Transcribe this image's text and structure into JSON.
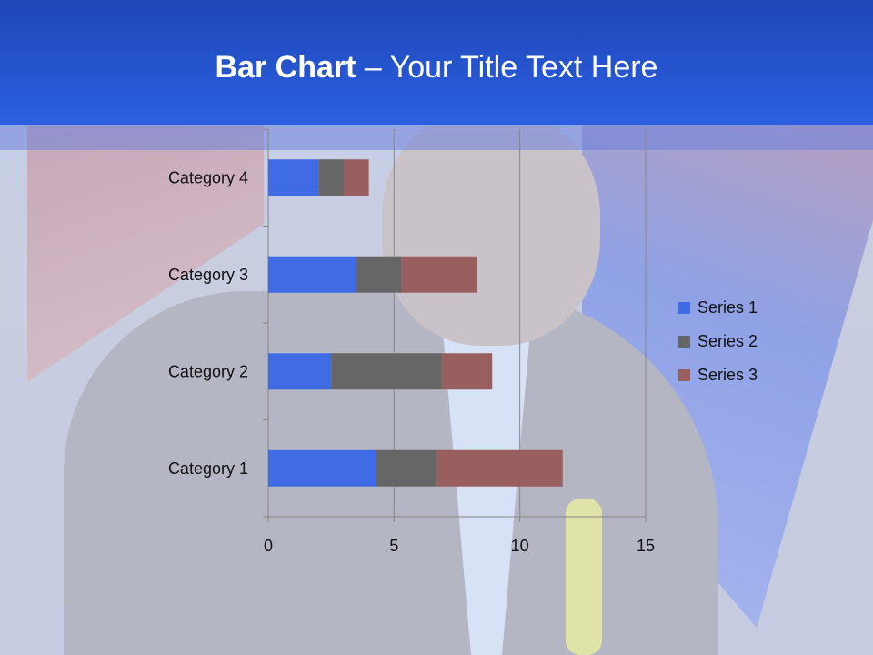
{
  "slide": {
    "title_bold": "Bar Chart",
    "title_rest": " – Your Title Text Here"
  },
  "chart_data": {
    "type": "bar",
    "orientation": "horizontal",
    "stacked": true,
    "categories": [
      "Category 1",
      "Category 2",
      "Category 3",
      "Category 4"
    ],
    "series": [
      {
        "name": "Series 1",
        "values": [
          4.3,
          2.5,
          3.5,
          2
        ],
        "color": "#3f6be4"
      },
      {
        "name": "Series 2",
        "values": [
          2.4,
          4.4,
          1.8,
          1
        ],
        "color": "#666666"
      },
      {
        "name": "Series 3",
        "values": [
          5,
          2,
          3,
          1
        ],
        "color": "#995f5f"
      }
    ],
    "xlim": [
      0,
      15
    ],
    "xticks": [
      "0",
      "5",
      "10",
      "15"
    ],
    "grid": true,
    "legend": "right"
  }
}
